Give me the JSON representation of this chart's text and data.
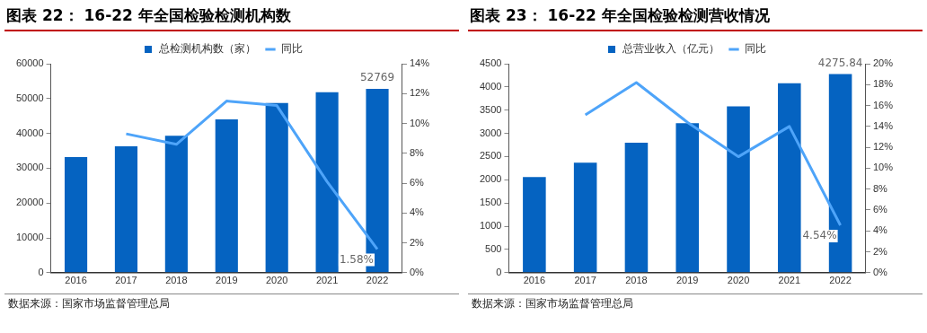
{
  "chart_data": [
    {
      "type": "bar",
      "title": "图表 22： 16-22 年全国检验检测机构数",
      "categories": [
        "2016",
        "2017",
        "2018",
        "2019",
        "2020",
        "2021",
        "2022"
      ],
      "series": [
        {
          "name": "总检测机构数（家）",
          "color": "#0563c1",
          "values": [
            33200,
            36300,
            39300,
            44000,
            48700,
            51800,
            52769
          ],
          "value_labels": [
            null,
            null,
            null,
            null,
            null,
            null,
            "52769"
          ]
        },
        {
          "name": "同比",
          "type": "line",
          "axis": "y2",
          "color": "#4ea4f9",
          "values": [
            null,
            9.3,
            8.6,
            11.5,
            11.2,
            6.1,
            1.58
          ],
          "value_labels": [
            null,
            null,
            null,
            null,
            null,
            null,
            "1.58%"
          ]
        }
      ],
      "ylim": [
        0,
        60000
      ],
      "yticks": [
        0,
        10000,
        20000,
        30000,
        40000,
        50000,
        60000
      ],
      "y2lim": [
        0,
        14
      ],
      "y2ticks": [
        {
          "value": 0,
          "label": "0%"
        },
        {
          "value": 2,
          "label": "2%"
        },
        {
          "value": 4,
          "label": "4%"
        },
        {
          "value": 6,
          "label": "6%"
        },
        {
          "value": 8,
          "label": "8%"
        },
        {
          "value": 10,
          "label": "10%"
        },
        {
          "value": 12,
          "label": "12%"
        },
        {
          "value": 14,
          "label": "14%"
        }
      ],
      "grid": false,
      "legend": "top",
      "marker": "none",
      "line_style": "solid",
      "annotations": [
        "数据来源：国家市场监督管理总局"
      ]
    },
    {
      "type": "bar",
      "title": "图表 23： 16-22 年全国检验检测营收情况",
      "categories": [
        "2016",
        "2017",
        "2018",
        "2019",
        "2020",
        "2021",
        "2022"
      ],
      "series": [
        {
          "name": "总营业收入（亿元）",
          "color": "#0563c1",
          "values": [
            2060,
            2370,
            2800,
            3220,
            3580,
            4080,
            4275.84
          ],
          "value_labels": [
            null,
            null,
            null,
            null,
            null,
            null,
            "4275.84"
          ]
        },
        {
          "name": "同比",
          "type": "line",
          "axis": "y2",
          "color": "#4ea4f9",
          "values": [
            null,
            15.1,
            18.2,
            14.4,
            11.1,
            14.0,
            4.54
          ],
          "value_labels": [
            null,
            null,
            null,
            null,
            null,
            null,
            "4.54%"
          ]
        }
      ],
      "ylim": [
        0,
        4500
      ],
      "yticks": [
        0,
        500,
        1000,
        1500,
        2000,
        2500,
        3000,
        3500,
        4000,
        4500
      ],
      "y2lim": [
        0,
        20
      ],
      "y2ticks": [
        {
          "value": 0,
          "label": "0%"
        },
        {
          "value": 2,
          "label": "2%"
        },
        {
          "value": 4,
          "label": "4%"
        },
        {
          "value": 6,
          "label": "6%"
        },
        {
          "value": 8,
          "label": "8%"
        },
        {
          "value": 10,
          "label": "10%"
        },
        {
          "value": 12,
          "label": "12%"
        },
        {
          "value": 14,
          "label": "14%"
        },
        {
          "value": 16,
          "label": "16%"
        },
        {
          "value": 18,
          "label": "18%"
        },
        {
          "value": 20,
          "label": "20%"
        }
      ],
      "grid": false,
      "legend": "top",
      "marker": "none",
      "line_style": "solid",
      "annotations": [
        "数据来源：国家市场监督管理总局"
      ]
    }
  ]
}
